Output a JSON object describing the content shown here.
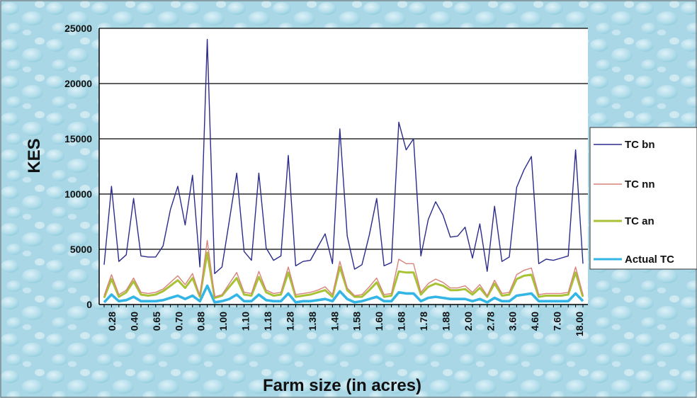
{
  "chart_data": {
    "type": "line",
    "title": "",
    "xlabel": "Farm size (in acres)",
    "ylabel": "KES",
    "ylim": [
      0,
      25000
    ],
    "y_ticks": [
      0,
      5000,
      10000,
      15000,
      20000,
      25000
    ],
    "grid": "horizontal",
    "legend_position": "right",
    "x_tick_labels": [
      "0.28",
      "0.40",
      "0.65",
      "0.70",
      "0.88",
      "1.00",
      "1.10",
      "1.18",
      "1.28",
      "1.38",
      "1.48",
      "1.58",
      "1.60",
      "1.68",
      "1.78",
      "1.88",
      "2.00",
      "2.78",
      "3.60",
      "4.60",
      "7.60",
      "18.00"
    ],
    "series": [
      {
        "name": "TC bn",
        "color": "#2b2b8c",
        "values": [
          3600,
          10700,
          3900,
          4500,
          9600,
          4400,
          4300,
          4300,
          5300,
          8600,
          10700,
          7200,
          11700,
          3400,
          24000,
          2800,
          3400,
          7600,
          11900,
          4800,
          4000,
          11900,
          5100,
          4000,
          4400,
          13500,
          3500,
          3900,
          4000,
          5200,
          6400,
          3700,
          15900,
          6200,
          3200,
          3600,
          6300,
          9600,
          3500,
          3800,
          16500,
          14000,
          15000,
          4400,
          7700,
          9300,
          8100,
          6100,
          6200,
          7000,
          4200,
          7300,
          3000,
          8900,
          3900,
          4300,
          10600,
          12200,
          13400,
          3700,
          4100,
          4000,
          4200,
          4400,
          14000,
          3700
        ]
      },
      {
        "name": "TC nn",
        "color": "#d9827a",
        "values": [
          800,
          2700,
          900,
          1300,
          2400,
          1100,
          1000,
          1100,
          1400,
          2000,
          2600,
          1800,
          2800,
          800,
          5800,
          700,
          900,
          1900,
          2900,
          1100,
          1000,
          3000,
          1300,
          1000,
          1100,
          3400,
          900,
          1000,
          1100,
          1300,
          1600,
          900,
          3900,
          1500,
          800,
          900,
          1600,
          2400,
          900,
          1000,
          4100,
          3700,
          3700,
          1100,
          1900,
          2300,
          2000,
          1500,
          1500,
          1700,
          1100,
          1800,
          800,
          2200,
          1000,
          1100,
          2700,
          3100,
          3300,
          900,
          1000,
          1000,
          1000,
          1100,
          3400,
          900
        ]
      },
      {
        "name": "TC an",
        "color": "#a8c236",
        "values": [
          600,
          2300,
          700,
          1100,
          2100,
          900,
          800,
          900,
          1200,
          1700,
          2200,
          1500,
          2400,
          700,
          4700,
          600,
          800,
          1600,
          2400,
          900,
          800,
          2500,
          1100,
          800,
          900,
          2900,
          700,
          800,
          900,
          1100,
          1300,
          700,
          3400,
          1300,
          700,
          700,
          1300,
          2000,
          700,
          800,
          3000,
          2900,
          2900,
          900,
          1600,
          1900,
          1700,
          1300,
          1300,
          1400,
          900,
          1500,
          700,
          1900,
          800,
          900,
          2300,
          2600,
          2700,
          700,
          800,
          800,
          800,
          900,
          2900,
          700
        ]
      },
      {
        "name": "Actual TC",
        "color": "#33b5e5",
        "values": [
          200,
          900,
          300,
          400,
          700,
          300,
          300,
          300,
          400,
          600,
          800,
          500,
          800,
          300,
          1700,
          200,
          300,
          500,
          900,
          300,
          300,
          900,
          400,
          300,
          300,
          1000,
          200,
          300,
          300,
          400,
          500,
          300,
          1200,
          500,
          200,
          300,
          500,
          700,
          300,
          300,
          1100,
          1000,
          1000,
          300,
          600,
          700,
          600,
          500,
          500,
          500,
          300,
          500,
          200,
          600,
          300,
          300,
          800,
          900,
          1000,
          300,
          300,
          300,
          300,
          300,
          1000,
          300
        ]
      }
    ]
  }
}
